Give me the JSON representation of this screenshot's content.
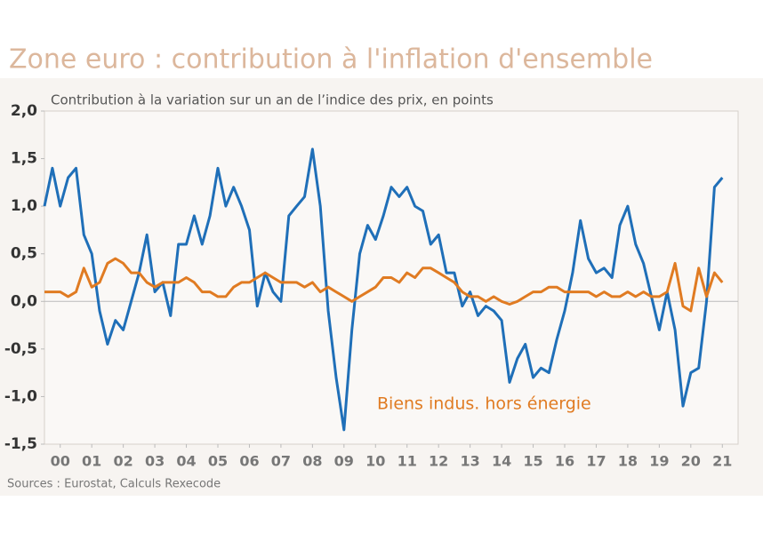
{
  "chart_data": {
    "type": "line",
    "title": "Zone euro : contribution à l'inflation d'ensemble",
    "subtitle": "Contribution à la variation sur un an de l’indice des prix, en points",
    "source": "Sources :  Eurostat, Calculs Rexecode",
    "annotation": "Biens indus. hors énergie",
    "x": [
      2000,
      2000.25,
      2000.5,
      2000.75,
      2001,
      2001.25,
      2001.5,
      2001.75,
      2002,
      2002.25,
      2002.5,
      2002.75,
      2003,
      2003.25,
      2003.5,
      2003.75,
      2004,
      2004.25,
      2004.5,
      2004.75,
      2005,
      2005.25,
      2005.5,
      2005.75,
      2006,
      2006.25,
      2006.5,
      2006.75,
      2007,
      2007.25,
      2007.5,
      2007.75,
      2008,
      2008.25,
      2008.5,
      2008.75,
      2009,
      2009.25,
      2009.5,
      2009.75,
      2010,
      2010.25,
      2010.5,
      2010.75,
      2011,
      2011.25,
      2011.5,
      2011.75,
      2012,
      2012.25,
      2012.5,
      2012.75,
      2013,
      2013.25,
      2013.5,
      2013.75,
      2014,
      2014.25,
      2014.5,
      2014.75,
      2015,
      2015.25,
      2015.5,
      2015.75,
      2016,
      2016.25,
      2016.5,
      2016.75,
      2017,
      2017.25,
      2017.5,
      2017.75,
      2018,
      2018.25,
      2018.5,
      2018.75,
      2019,
      2019.25,
      2019.5,
      2019.75,
      2020,
      2020.25,
      2020.5,
      2020.75,
      2021,
      2021.25,
      2021.5
    ],
    "series": [
      {
        "color": "#1f6fb8",
        "values": [
          1.0,
          1.4,
          1.0,
          1.3,
          1.4,
          0.7,
          0.5,
          -0.1,
          -0.45,
          -0.2,
          -0.3,
          0.0,
          0.3,
          0.7,
          0.1,
          0.2,
          -0.15,
          0.6,
          0.6,
          0.9,
          0.6,
          0.9,
          1.4,
          1.0,
          1.2,
          1.0,
          0.75,
          -0.05,
          0.3,
          0.1,
          0.0,
          0.9,
          1.0,
          1.1,
          1.6,
          1.0,
          -0.1,
          -0.8,
          -1.35,
          -0.3,
          0.5,
          0.8,
          0.65,
          0.9,
          1.2,
          1.1,
          1.2,
          1.0,
          0.95,
          0.6,
          0.7,
          0.3,
          0.3,
          -0.05,
          0.1,
          -0.15,
          -0.05,
          -0.1,
          -0.2,
          -0.85,
          -0.6,
          -0.45,
          -0.8,
          -0.7,
          -0.75,
          -0.4,
          -0.1,
          0.3,
          0.85,
          0.45,
          0.3,
          0.35,
          0.25,
          0.8,
          1.0,
          0.6,
          0.4,
          0.05,
          -0.3,
          0.1,
          -0.3,
          -1.1,
          -0.75,
          -0.7,
          0.0,
          1.2,
          1.3
        ]
      },
      {
        "name": "Biens indus. hors énergie",
        "color": "#e07b22",
        "values": [
          0.1,
          0.1,
          0.1,
          0.05,
          0.1,
          0.35,
          0.15,
          0.2,
          0.4,
          0.45,
          0.4,
          0.3,
          0.3,
          0.2,
          0.15,
          0.2,
          0.2,
          0.2,
          0.25,
          0.2,
          0.1,
          0.1,
          0.05,
          0.05,
          0.15,
          0.2,
          0.2,
          0.25,
          0.3,
          0.25,
          0.2,
          0.2,
          0.2,
          0.15,
          0.2,
          0.1,
          0.15,
          0.1,
          0.05,
          0.0,
          0.05,
          0.1,
          0.15,
          0.25,
          0.25,
          0.2,
          0.3,
          0.25,
          0.35,
          0.35,
          0.3,
          0.25,
          0.2,
          0.1,
          0.05,
          0.05,
          0.0,
          0.05,
          0.0,
          -0.03,
          0.0,
          0.05,
          0.1,
          0.1,
          0.15,
          0.15,
          0.1,
          0.1,
          0.1,
          0.1,
          0.05,
          0.1,
          0.05,
          0.05,
          0.1,
          0.05,
          0.1,
          0.05,
          0.05,
          0.1,
          0.4,
          -0.05,
          -0.1,
          0.35,
          0.05,
          0.3,
          0.2
        ]
      }
    ],
    "xlim": [
      2000,
      2022
    ],
    "xticks": [
      {
        "value": 2000.5,
        "label": "00"
      },
      {
        "value": 2001.5,
        "label": "01"
      },
      {
        "value": 2002.5,
        "label": "02"
      },
      {
        "value": 2003.5,
        "label": "03"
      },
      {
        "value": 2004.5,
        "label": "04"
      },
      {
        "value": 2005.5,
        "label": "05"
      },
      {
        "value": 2006.5,
        "label": "06"
      },
      {
        "value": 2007.5,
        "label": "07"
      },
      {
        "value": 2008.5,
        "label": "08"
      },
      {
        "value": 2009.5,
        "label": "09"
      },
      {
        "value": 2010.5,
        "label": "10"
      },
      {
        "value": 2011.5,
        "label": "11"
      },
      {
        "value": 2012.5,
        "label": "12"
      },
      {
        "value": 2013.5,
        "label": "13"
      },
      {
        "value": 2014.5,
        "label": "14"
      },
      {
        "value": 2015.5,
        "label": "15"
      },
      {
        "value": 2016.5,
        "label": "16"
      },
      {
        "value": 2017.5,
        "label": "17"
      },
      {
        "value": 2018.5,
        "label": "18"
      },
      {
        "value": 2019.5,
        "label": "19"
      },
      {
        "value": 2020.5,
        "label": "20"
      },
      {
        "value": 2021.5,
        "label": "21"
      }
    ],
    "ylim": [
      -1.5,
      2.0
    ],
    "yticks": [
      {
        "value": -1.5,
        "label": "-1,5"
      },
      {
        "value": -1.0,
        "label": "-1,0"
      },
      {
        "value": -0.5,
        "label": "-0,5"
      },
      {
        "value": 0,
        "label": "0,0"
      },
      {
        "value": 0.5,
        "label": "0,5"
      },
      {
        "value": 1.0,
        "label": "1,0"
      },
      {
        "value": 1.5,
        "label": "1,5"
      },
      {
        "value": 2.0,
        "label": "2,0"
      }
    ]
  }
}
